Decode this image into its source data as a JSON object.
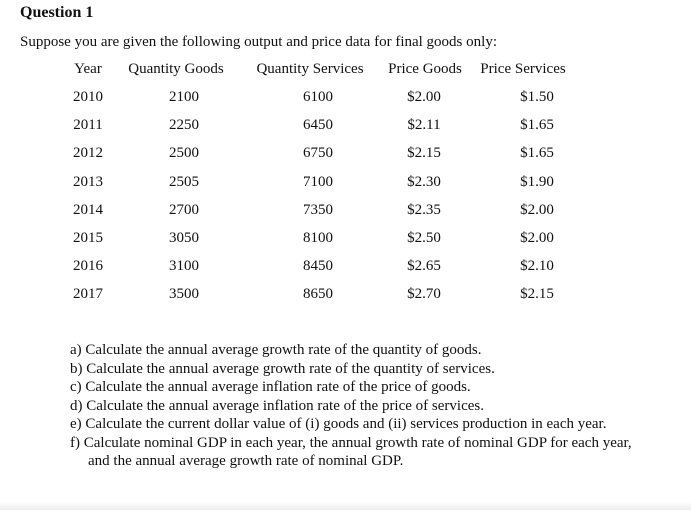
{
  "title": "Question 1",
  "intro": "Suppose you are given the following output and price data for final goods only:",
  "table": {
    "headers": [
      "Year",
      "Quantity Goods",
      "Quantity Services",
      "Price Goods",
      "Price Services"
    ],
    "rows": [
      [
        "2010",
        "2100",
        "6100",
        "$2.00",
        "$1.50"
      ],
      [
        "2011",
        "2250",
        "6450",
        "$2.11",
        "$1.65"
      ],
      [
        "2012",
        "2500",
        "6750",
        "$2.15",
        "$1.65"
      ],
      [
        "2013",
        "2505",
        "7100",
        "$2.30",
        "$1.90"
      ],
      [
        "2014",
        "2700",
        "7350",
        "$2.35",
        "$2.00"
      ],
      [
        "2015",
        "3050",
        "8100",
        "$2.50",
        "$2.00"
      ],
      [
        "2016",
        "3100",
        "8450",
        "$2.65",
        "$2.10"
      ],
      [
        "2017",
        "3500",
        "8650",
        "$2.70",
        "$2.15"
      ]
    ]
  },
  "questions": [
    "a) Calculate the annual average growth rate of the quantity of goods.",
    "b) Calculate the annual average growth rate of the quantity of services.",
    "c) Calculate the annual average inflation rate of the price of goods.",
    "d) Calculate the annual average inflation rate of the price of services.",
    "e) Calculate the current dollar value of (i) goods and (ii) services production in each year.",
    "f) Calculate nominal GDP in each year, the annual growth rate of nominal GDP for each year, and the annual average growth rate of nominal GDP."
  ]
}
